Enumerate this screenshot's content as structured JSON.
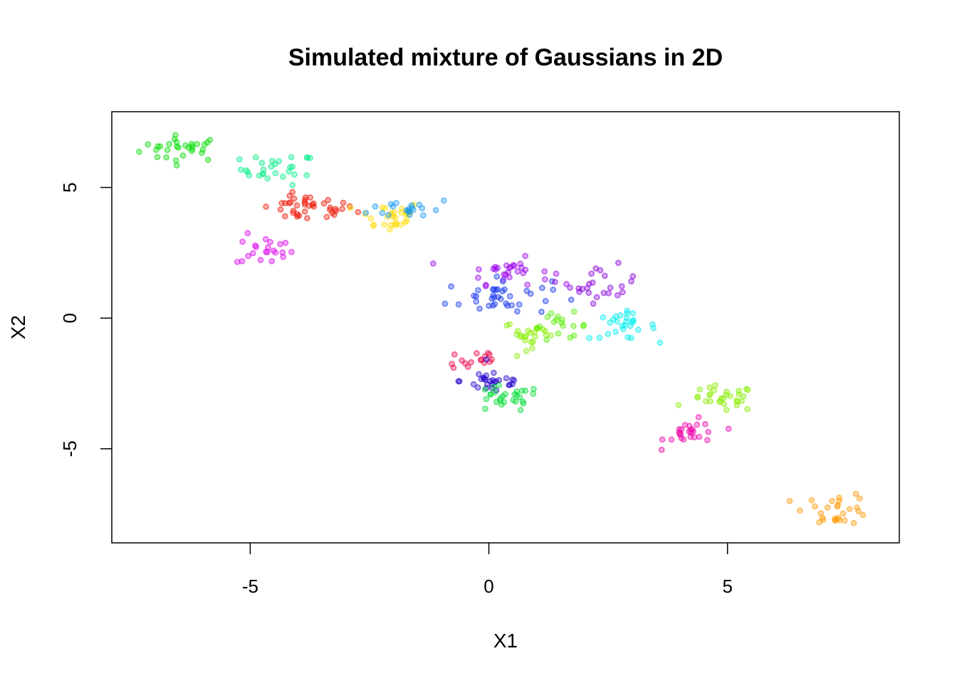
{
  "chart_data": {
    "type": "scatter",
    "title": "Simulated mixture of Gaussians in 2D",
    "xlabel": "X1",
    "ylabel": "X2",
    "xlim": [
      -7.9,
      8.6
    ],
    "ylim": [
      -8.6,
      7.9
    ],
    "xticks": [
      -5,
      0,
      5
    ],
    "yticks": [
      -5,
      0,
      5
    ],
    "xtick_labels": [
      "-5",
      "0",
      "5"
    ],
    "ytick_labels": [
      "-5",
      "0",
      "5"
    ],
    "grid": false,
    "legend": "none",
    "clusters": [
      {
        "color": "#00dd00",
        "center": [
          -6.4,
          6.5
        ],
        "sd": [
          0.45,
          0.25
        ],
        "n": 30
      },
      {
        "color": "#00ee88",
        "center": [
          -4.4,
          5.7
        ],
        "sd": [
          0.4,
          0.3
        ],
        "n": 28
      },
      {
        "color": "#ee1100",
        "center": [
          -3.8,
          4.2
        ],
        "sd": [
          0.5,
          0.25
        ],
        "n": 40
      },
      {
        "color": "#dd00ee",
        "center": [
          -4.7,
          2.6
        ],
        "sd": [
          0.3,
          0.3
        ],
        "n": 22
      },
      {
        "color": "#ffdd00",
        "center": [
          -2.1,
          3.9
        ],
        "sd": [
          0.35,
          0.3
        ],
        "n": 30
      },
      {
        "color": "#1199ee",
        "center": [
          -1.6,
          4.2
        ],
        "sd": [
          0.45,
          0.2
        ],
        "n": 20
      },
      {
        "color": "#9900ee",
        "center": [
          0.4,
          1.8
        ],
        "sd": [
          0.45,
          0.25
        ],
        "n": 30
      },
      {
        "color": "#1133ee",
        "center": [
          0.2,
          0.8
        ],
        "sd": [
          0.55,
          0.35
        ],
        "n": 38
      },
      {
        "color": "#8800dd",
        "center": [
          2.4,
          1.3
        ],
        "sd": [
          0.35,
          0.35
        ],
        "n": 24
      },
      {
        "color": "#88ee00",
        "center": [
          0.9,
          -0.6
        ],
        "sd": [
          0.3,
          0.25
        ],
        "n": 24
      },
      {
        "color": "#55ee00",
        "center": [
          1.5,
          -0.3
        ],
        "sd": [
          0.3,
          0.25
        ],
        "n": 18
      },
      {
        "color": "#00eeee",
        "center": [
          2.8,
          -0.3
        ],
        "sd": [
          0.35,
          0.25
        ],
        "n": 28
      },
      {
        "color": "#ee0044",
        "center": [
          -0.3,
          -1.6
        ],
        "sd": [
          0.3,
          0.25
        ],
        "n": 16
      },
      {
        "color": "#2200cc",
        "center": [
          0.1,
          -2.4
        ],
        "sd": [
          0.35,
          0.25
        ],
        "n": 28
      },
      {
        "color": "#00dd33",
        "center": [
          0.3,
          -3.1
        ],
        "sd": [
          0.4,
          0.25
        ],
        "n": 28
      },
      {
        "color": "#88ee00",
        "center": [
          4.9,
          -3.1
        ],
        "sd": [
          0.35,
          0.25
        ],
        "n": 30
      },
      {
        "color": "#ee00aa",
        "center": [
          4.3,
          -4.4
        ],
        "sd": [
          0.3,
          0.25
        ],
        "n": 26
      },
      {
        "color": "#ff9900",
        "center": [
          7.3,
          -7.3
        ],
        "sd": [
          0.35,
          0.3
        ],
        "n": 28
      }
    ]
  }
}
